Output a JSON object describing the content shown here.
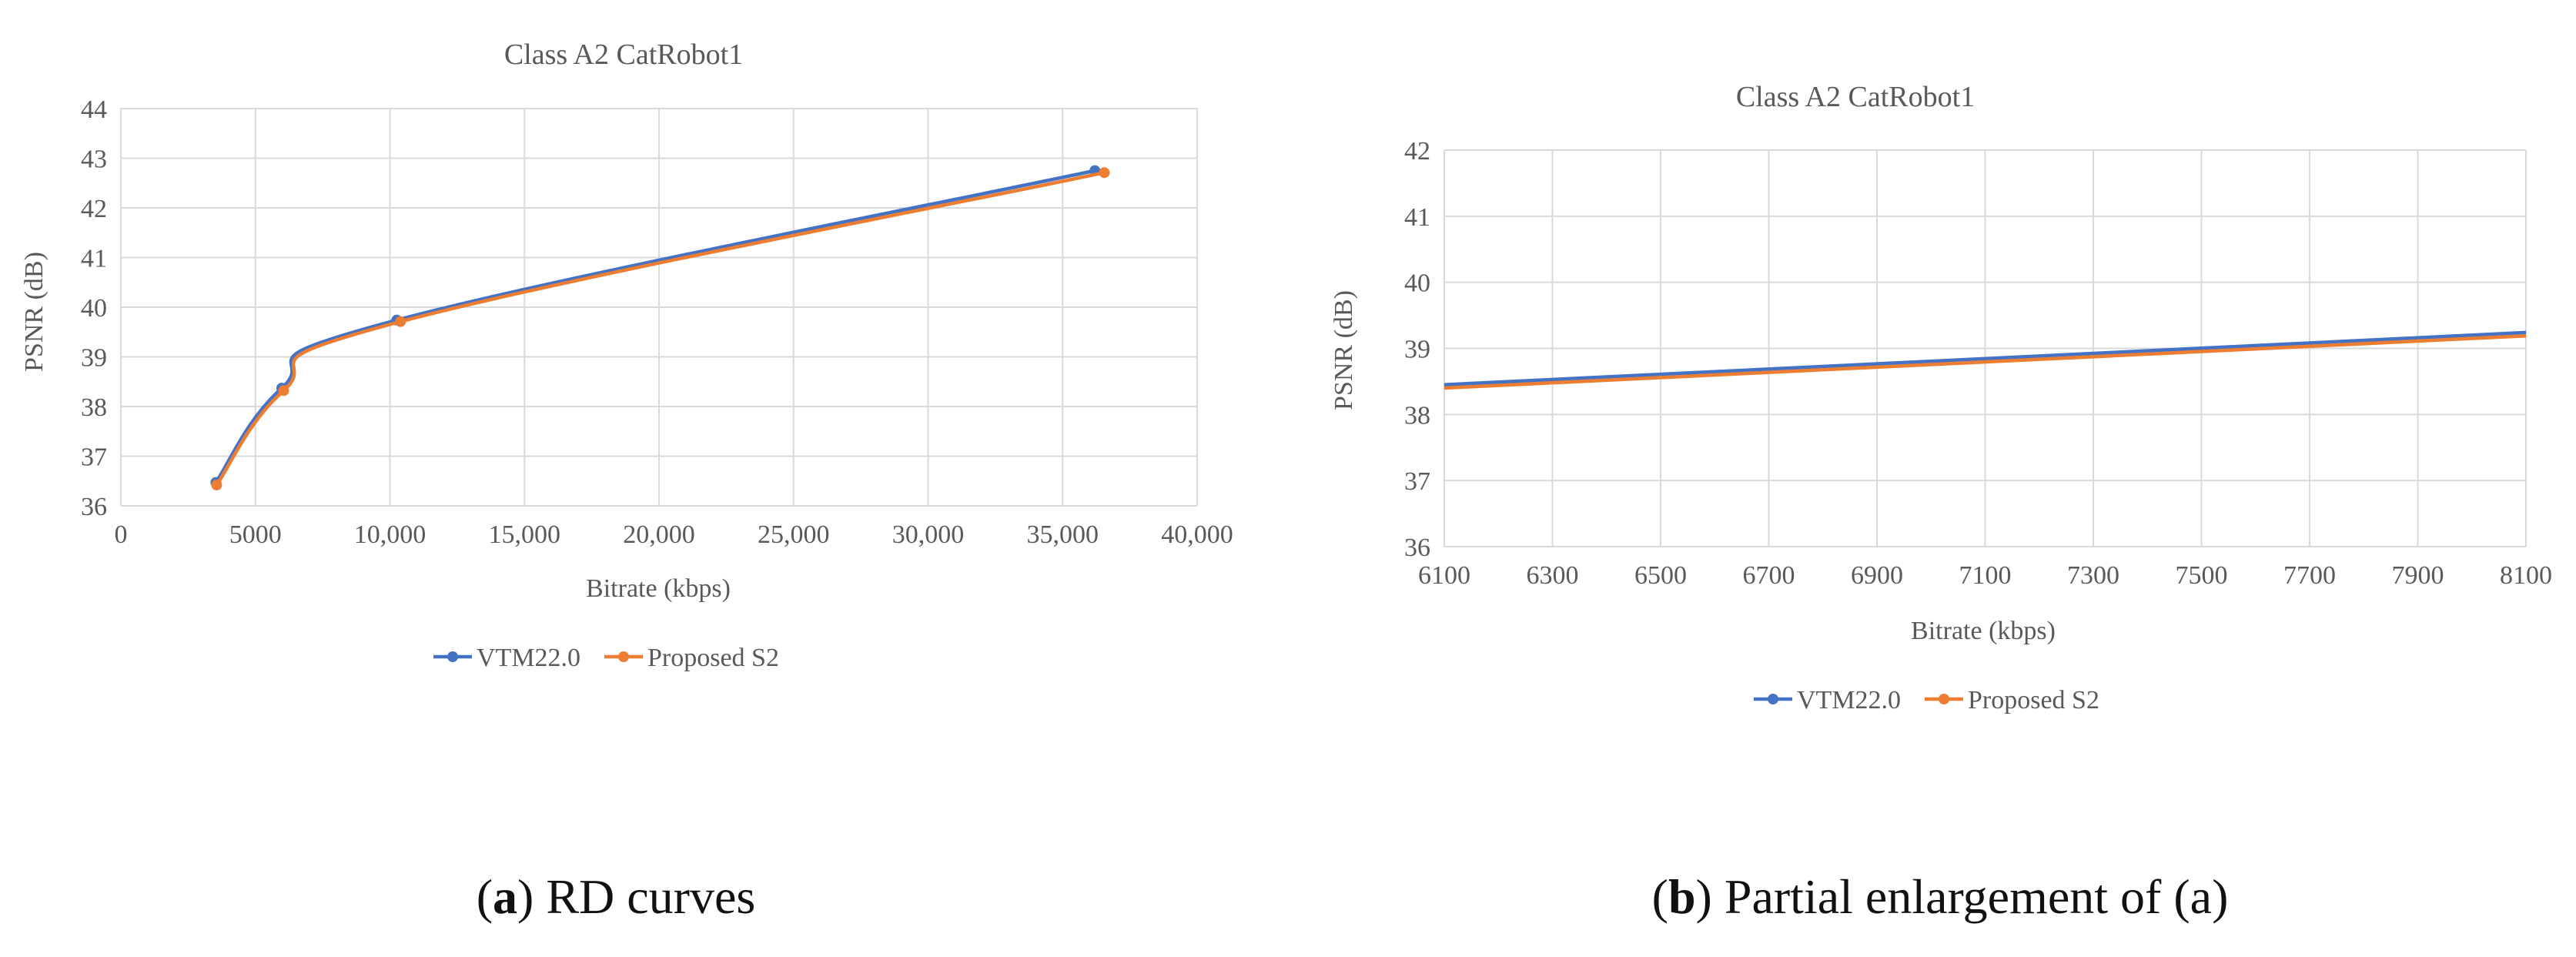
{
  "chart_data": [
    {
      "type": "line",
      "title": "Class A2 CatRobot1",
      "xlabel": "Bitrate (kbps)",
      "ylabel": "PSNR (dB)",
      "xlim": [
        0,
        40000
      ],
      "ylim": [
        36,
        44
      ],
      "xticks": [
        0,
        5000,
        10000,
        15000,
        20000,
        25000,
        30000,
        35000,
        40000
      ],
      "xtick_labels": [
        "0",
        "5000",
        "10,000",
        "15,000",
        "20,000",
        "25,000",
        "30,000",
        "35,000",
        "40,000"
      ],
      "yticks": [
        36,
        37,
        38,
        39,
        40,
        41,
        42,
        43,
        44
      ],
      "ytick_labels": [
        "36",
        "37",
        "38",
        "39",
        "40",
        "41",
        "42",
        "43",
        "44"
      ],
      "grid": true,
      "legend_position": "bottom",
      "markers": true,
      "series": [
        {
          "name": "VTM22.0",
          "color": "#4472C4",
          "x": [
            3530,
            5980,
            10250,
            36200
          ],
          "y": [
            36.47,
            38.37,
            39.74,
            42.75
          ]
        },
        {
          "name": "Proposed S2",
          "color": "#ED7D31",
          "x": [
            3560,
            6050,
            10390,
            36550
          ],
          "y": [
            36.42,
            38.32,
            39.71,
            42.71
          ]
        }
      ]
    },
    {
      "type": "line",
      "title": "Class A2 CatRobot1",
      "xlabel": "Bitrate (kbps)",
      "ylabel": "PSNR (dB)",
      "xlim": [
        6100,
        8100
      ],
      "ylim": [
        36,
        42
      ],
      "xticks": [
        6100,
        6300,
        6500,
        6700,
        6900,
        7100,
        7300,
        7500,
        7700,
        7900,
        8100
      ],
      "xtick_labels": [
        "6100",
        "6300",
        "6500",
        "6700",
        "6900",
        "7100",
        "7300",
        "7500",
        "7700",
        "7900",
        "8100"
      ],
      "yticks": [
        36,
        37,
        38,
        39,
        40,
        41,
        42
      ],
      "ytick_labels": [
        "36",
        "37",
        "38",
        "39",
        "40",
        "41",
        "42"
      ],
      "grid": true,
      "legend_position": "bottom",
      "markers": false,
      "series": [
        {
          "name": "VTM22.0",
          "color": "#4472C4",
          "x": [
            6100,
            8100
          ],
          "y": [
            38.45,
            39.24
          ]
        },
        {
          "name": "Proposed S2",
          "color": "#ED7D31",
          "x": [
            6100,
            8100
          ],
          "y": [
            38.4,
            39.19
          ]
        }
      ]
    }
  ],
  "captions": [
    {
      "label": "a",
      "text": "RD curves",
      "open": "(",
      "close": ")"
    },
    {
      "label": "b",
      "text": "Partial enlargement of (a)",
      "open": "(",
      "close": ")"
    }
  ]
}
